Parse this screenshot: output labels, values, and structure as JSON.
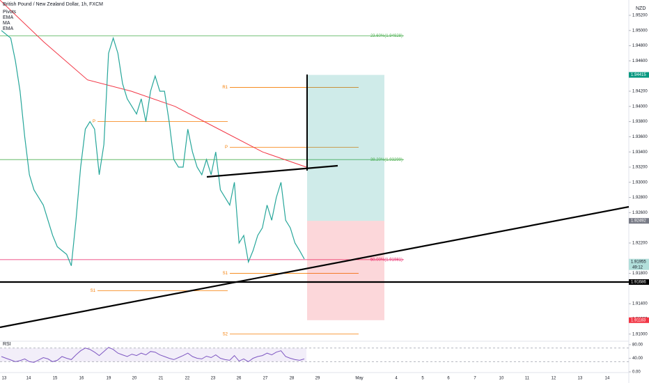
{
  "chart_data": [
    {
      "type": "line",
      "title": "British Pound / New Zealand Dollar, 1h, FXCM",
      "legend": [
        "Pivots",
        "EMA",
        "MA",
        "EMA"
      ],
      "currency": "NZD",
      "color": "#26a69a",
      "values": [
        1.95,
        1.9495,
        1.949,
        1.946,
        1.942,
        1.936,
        1.931,
        1.929,
        1.928,
        1.927,
        1.925,
        1.923,
        1.9215,
        1.921,
        1.9205,
        1.919,
        1.925,
        1.932,
        1.937,
        1.938,
        1.937,
        1.931,
        1.935,
        1.947,
        1.949,
        1.947,
        1.943,
        1.941,
        1.94,
        1.939,
        1.941,
        1.938,
        1.942,
        1.944,
        1.942,
        1.942,
        1.938,
        1.933,
        1.932,
        1.932,
        1.937,
        1.934,
        1.932,
        1.931,
        1.933,
        1.931,
        1.934,
        1.929,
        1.928,
        1.927,
        1.93,
        1.922,
        1.923,
        1.9195,
        1.921,
        1.923,
        1.924,
        1.927,
        1.925,
        1.928,
        1.93,
        1.925,
        1.924,
        1.922,
        1.921,
        1.9199
      ],
      "overlays": [
        {
          "color": "#f23645",
          "values": [
            1.954,
            1.9485,
            1.9435,
            1.942,
            1.94,
            1.937,
            1.934,
            1.932
          ]
        }
      ],
      "levels": [
        {
          "label": "23.60%(1.94928)",
          "value": 1.94928,
          "color": "#4caf50"
        },
        {
          "label": "38.20%(1.93299)",
          "value": 1.93299,
          "color": "#4caf50"
        },
        {
          "label": "50.00%(1.91981)",
          "value": 1.91981,
          "color": "#e91e63"
        }
      ],
      "pivots": [
        {
          "label": "P",
          "value": 1.938
        },
        {
          "label": "S1",
          "value": 1.9157
        },
        {
          "label": "R1",
          "value": 1.9425
        },
        {
          "label": "P",
          "value": 1.9346
        },
        {
          "label": "S1",
          "value": 1.918
        },
        {
          "label": "S2",
          "value": 1.91
        }
      ],
      "price_tags": [
        {
          "value": 1.94415,
          "label": "1.94415",
          "color": "#089981"
        },
        {
          "value": 1.92492,
          "label": "1.92492",
          "color": "#787b86"
        },
        {
          "value": 1.91955,
          "label": "1.91955",
          "color": "#b2dfdb"
        },
        {
          "value": 1.91686,
          "label": "1.91686",
          "color": "#000000"
        },
        {
          "value": 1.91183,
          "label": "1.91183",
          "color": "#f23645"
        }
      ],
      "countdown": "49:12",
      "x_tick_labels": [
        "13",
        "14",
        "15",
        "16",
        "19",
        "20",
        "21",
        "22",
        "23",
        "26",
        "27",
        "28",
        "29",
        "May",
        "4",
        "5",
        "6",
        "7",
        "10",
        "11",
        "12",
        "13",
        "14"
      ],
      "ylim": [
        1.90906,
        1.95402
      ],
      "yticks": [
        {
          "value": 1.952,
          "label": "1.95200"
        },
        {
          "value": 1.95,
          "label": "1.95000"
        },
        {
          "value": 1.948,
          "label": "1.94800"
        },
        {
          "value": 1.946,
          "label": "1.94600"
        },
        {
          "value": 1.942,
          "label": "1.94200"
        },
        {
          "value": 1.94,
          "label": "1.94000"
        },
        {
          "value": 1.938,
          "label": "1.93800"
        },
        {
          "value": 1.936,
          "label": "1.93600"
        },
        {
          "value": 1.934,
          "label": "1.93400"
        },
        {
          "value": 1.932,
          "label": "1.93200"
        },
        {
          "value": 1.93,
          "label": "1.93000"
        },
        {
          "value": 1.928,
          "label": "1.92800"
        },
        {
          "value": 1.926,
          "label": "1.92600"
        },
        {
          "value": 1.922,
          "label": "1.92200"
        },
        {
          "value": 1.918,
          "label": "1.91800"
        },
        {
          "value": 1.914,
          "label": "1.91400"
        },
        {
          "value": 1.912,
          "label": "1.91200"
        },
        {
          "value": 1.91,
          "label": "1.91000"
        }
      ]
    },
    {
      "type": "line",
      "title": "RSI",
      "color": "#7e57c2",
      "values": [
        45,
        40,
        35,
        30,
        33,
        38,
        30,
        28,
        35,
        42,
        38,
        30,
        34,
        45,
        40,
        36,
        50,
        62,
        70,
        66,
        58,
        48,
        60,
        72,
        66,
        55,
        50,
        45,
        52,
        48,
        55,
        50,
        60,
        58,
        50,
        45,
        40,
        36,
        42,
        48,
        55,
        45,
        40,
        38,
        46,
        42,
        50,
        40,
        36,
        34,
        48,
        32,
        38,
        30,
        40,
        45,
        48,
        55,
        50,
        58,
        62,
        45,
        40,
        36,
        34,
        38
      ],
      "band": [
        30,
        70
      ],
      "ylim": [
        -2,
        88
      ],
      "yticks": [
        {
          "value": 80,
          "label": "80.00"
        },
        {
          "value": 40,
          "label": "40.00"
        },
        {
          "value": 0,
          "label": "0.00"
        }
      ]
    }
  ]
}
